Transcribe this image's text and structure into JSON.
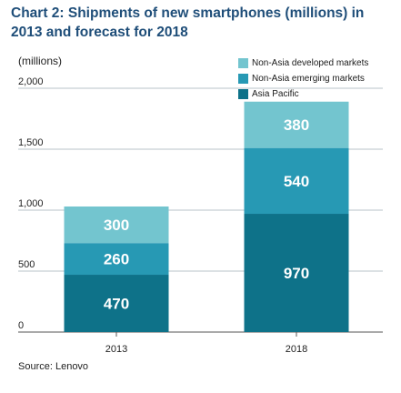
{
  "header": {
    "title": "Chart 2: Shipments of new smartphones (millions) in 2013 and forecast for 2018",
    "unit_label": "(millions)"
  },
  "source": "Source: Lenovo",
  "chart_data": {
    "type": "bar",
    "stacked": true,
    "categories": [
      "2013",
      "2018"
    ],
    "series": [
      {
        "name": "Asia Pacific",
        "values": [
          470,
          970
        ],
        "color": "#0e7289"
      },
      {
        "name": "Non-Asia emerging markets",
        "values": [
          260,
          540
        ],
        "color": "#2799b4"
      },
      {
        "name": "Non-Asia developed markets",
        "values": [
          300,
          380
        ],
        "color": "#73c5cf"
      }
    ],
    "legend_order": [
      "Non-Asia developed markets",
      "Non-Asia emerging markets",
      "Asia Pacific"
    ],
    "legend_position": "top-right",
    "ylim": [
      0,
      2000
    ],
    "yticks": [
      0,
      500,
      1000,
      1500,
      2000
    ],
    "ytick_labels": [
      "0",
      "500",
      "1,000",
      "1,500",
      "2,000"
    ],
    "grid": true,
    "xlabel": "",
    "ylabel": "(millions)",
    "data_label_color": "#ffffff"
  }
}
